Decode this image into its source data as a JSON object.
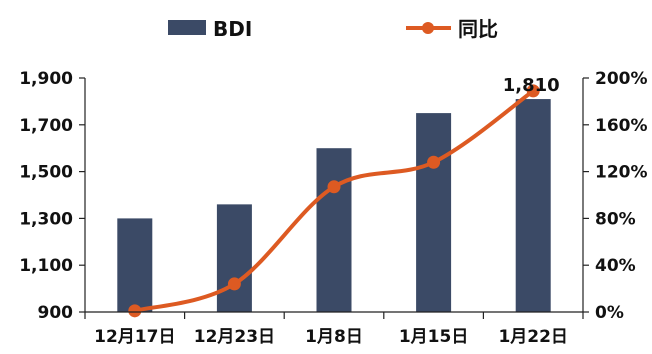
{
  "chart_data": {
    "type": "bar",
    "categories": [
      "12月17日",
      "12月23日",
      "1月8日",
      "1月15日",
      "1月22日"
    ],
    "series": [
      {
        "name": "BDI",
        "type": "bar",
        "axis": "left",
        "values": [
          1300,
          1360,
          1600,
          1750,
          1810
        ],
        "color": "#3b4a66"
      },
      {
        "name": "同比",
        "type": "line",
        "axis": "right",
        "values": [
          0.01,
          0.24,
          1.07,
          1.28,
          1.89
        ],
        "color": "#dd5a22"
      }
    ],
    "y_left": {
      "ylim": [
        900,
        1900
      ],
      "ticks": [
        "900",
        "1,100",
        "1,300",
        "1,500",
        "1,700",
        "1,900"
      ]
    },
    "y_right": {
      "ylim": [
        0,
        2.0
      ],
      "ticks": [
        "0%",
        "40%",
        "80%",
        "120%",
        "160%",
        "200%"
      ]
    },
    "annotations": [
      {
        "category": "1月22日",
        "text": "1,810"
      }
    ],
    "legend_position": "top",
    "grid": false
  }
}
